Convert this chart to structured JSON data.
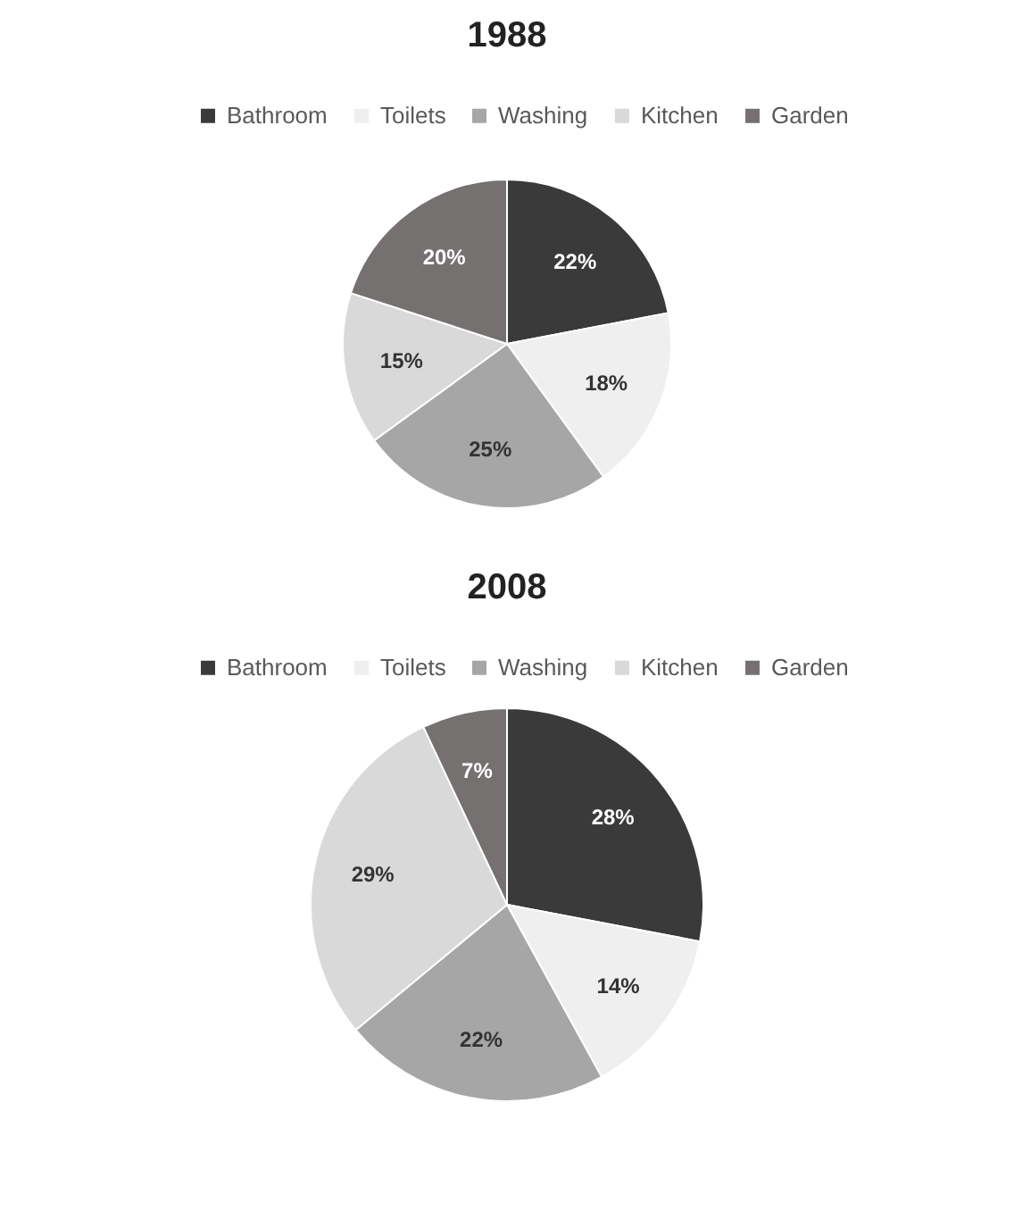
{
  "chart_data": [
    {
      "type": "pie",
      "title": "1988",
      "categories": [
        "Bathroom",
        "Toilets",
        "Washing",
        "Kitchen",
        "Garden"
      ],
      "values": [
        22,
        18,
        25,
        15,
        20
      ],
      "colors": [
        "#3a3a3a",
        "#efefef",
        "#a6a6a6",
        "#d9d9d9",
        "#767171"
      ],
      "value_labels": [
        "22%",
        "18%",
        "25%",
        "15%",
        "20%"
      ],
      "legend": "top"
    },
    {
      "type": "pie",
      "title": "2008",
      "categories": [
        "Bathroom",
        "Toilets",
        "Washing",
        "Kitchen",
        "Garden"
      ],
      "values": [
        28,
        14,
        22,
        29,
        7
      ],
      "colors": [
        "#3a3a3a",
        "#efefef",
        "#a6a6a6",
        "#d9d9d9",
        "#767171"
      ],
      "value_labels": [
        "28%",
        "14%",
        "22%",
        "29%",
        "7%"
      ],
      "legend": "top"
    }
  ]
}
